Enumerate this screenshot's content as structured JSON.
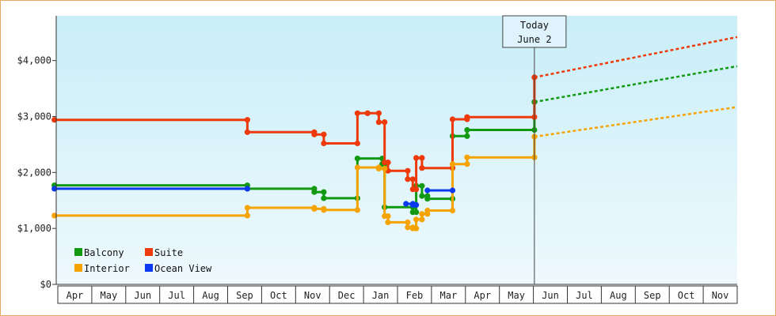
{
  "chart_data": {
    "type": "line",
    "step": true,
    "title": "",
    "xlabel": "",
    "ylabel": "",
    "ylim": [
      0,
      4800
    ],
    "y_ticks": [
      {
        "value": 0,
        "label": "$0"
      },
      {
        "value": 1000,
        "label": "$1,000"
      },
      {
        "value": 2000,
        "label": "$2,000"
      },
      {
        "value": 3000,
        "label": "$3,000"
      },
      {
        "value": 4000,
        "label": "$4,000"
      }
    ],
    "months": [
      "Apr",
      "May",
      "Jun",
      "Jul",
      "Aug",
      "Sep",
      "Oct",
      "Nov",
      "Dec",
      "Jan",
      "Feb",
      "Mar",
      "Apr",
      "May",
      "Jun",
      "Jul",
      "Aug",
      "Sep",
      "Oct",
      "Nov"
    ],
    "x_unit": "months since start of first Apr",
    "today": {
      "line1": "Today",
      "line2": "June 2",
      "x": 14.03
    },
    "legend": [
      {
        "label": "Balcony",
        "series": 0
      },
      {
        "label": "Suite",
        "series": 1
      },
      {
        "label": "Interior",
        "series": 2
      },
      {
        "label": "Ocean View",
        "series": 3
      }
    ],
    "colors": {
      "Balcony": "#119911",
      "Suite": "#ee3a0a",
      "Interior": "#f5a300",
      "Ocean View": "#0a3af0",
      "background_top": "#c9eef8",
      "background_bottom": "#eef9fd"
    },
    "series": [
      {
        "name": "Balcony",
        "points": [
          [
            -0.1,
            1770
          ],
          [
            5.58,
            1770
          ],
          [
            5.58,
            1710
          ],
          [
            7.55,
            1710
          ],
          [
            7.55,
            1650
          ],
          [
            7.83,
            1650
          ],
          [
            7.83,
            1540
          ],
          [
            8.82,
            1540
          ],
          [
            8.82,
            2250
          ],
          [
            9.55,
            2250
          ],
          [
            9.55,
            2150
          ],
          [
            9.62,
            2150
          ],
          [
            9.62,
            1380
          ],
          [
            10.45,
            1380
          ],
          [
            10.45,
            1290
          ],
          [
            10.55,
            1290
          ],
          [
            10.55,
            1760
          ],
          [
            10.72,
            1760
          ],
          [
            10.72,
            1580
          ],
          [
            10.88,
            1580
          ],
          [
            10.88,
            1530
          ],
          [
            11.62,
            1530
          ],
          [
            11.62,
            2650
          ],
          [
            12.05,
            2650
          ],
          [
            12.05,
            2760
          ],
          [
            14.03,
            2760
          ],
          [
            14.03,
            3260
          ]
        ],
        "projection": [
          [
            14.03,
            3260
          ],
          [
            20.0,
            3900
          ]
        ]
      },
      {
        "name": "Suite",
        "points": [
          [
            -0.1,
            2940
          ],
          [
            5.58,
            2940
          ],
          [
            5.58,
            2720
          ],
          [
            7.55,
            2720
          ],
          [
            7.55,
            2680
          ],
          [
            7.83,
            2680
          ],
          [
            7.83,
            2520
          ],
          [
            8.82,
            2520
          ],
          [
            8.82,
            3060
          ],
          [
            9.12,
            3060
          ],
          [
            9.12,
            3060
          ],
          [
            9.45,
            3060
          ],
          [
            9.45,
            2900
          ],
          [
            9.62,
            2900
          ],
          [
            9.62,
            2180
          ],
          [
            9.72,
            2180
          ],
          [
            9.72,
            2030
          ],
          [
            10.3,
            2030
          ],
          [
            10.3,
            1880
          ],
          [
            10.45,
            1880
          ],
          [
            10.45,
            1700
          ],
          [
            10.55,
            1700
          ],
          [
            10.55,
            2260
          ],
          [
            10.72,
            2260
          ],
          [
            10.72,
            2080
          ],
          [
            11.62,
            2080
          ],
          [
            11.62,
            2950
          ],
          [
            12.05,
            2950
          ],
          [
            12.05,
            2990
          ],
          [
            14.03,
            2990
          ],
          [
            14.03,
            3700
          ]
        ],
        "projection": [
          [
            14.03,
            3700
          ],
          [
            20.0,
            4420
          ]
        ]
      },
      {
        "name": "Interior",
        "points": [
          [
            -0.1,
            1230
          ],
          [
            5.58,
            1230
          ],
          [
            5.58,
            1370
          ],
          [
            7.55,
            1370
          ],
          [
            7.55,
            1350
          ],
          [
            7.83,
            1350
          ],
          [
            7.83,
            1330
          ],
          [
            8.82,
            1330
          ],
          [
            8.82,
            2090
          ],
          [
            9.45,
            2090
          ],
          [
            9.45,
            2070
          ],
          [
            9.62,
            2070
          ],
          [
            9.62,
            1220
          ],
          [
            9.72,
            1220
          ],
          [
            9.72,
            1110
          ],
          [
            10.3,
            1110
          ],
          [
            10.3,
            1020
          ],
          [
            10.45,
            1020
          ],
          [
            10.45,
            1000
          ],
          [
            10.55,
            1000
          ],
          [
            10.55,
            1160
          ],
          [
            10.72,
            1160
          ],
          [
            10.72,
            1260
          ],
          [
            10.88,
            1260
          ],
          [
            10.88,
            1320
          ],
          [
            11.62,
            1320
          ],
          [
            11.62,
            2150
          ],
          [
            12.05,
            2150
          ],
          [
            12.05,
            2270
          ],
          [
            14.03,
            2270
          ],
          [
            14.03,
            2640
          ]
        ],
        "projection": [
          [
            14.03,
            2640
          ],
          [
            20.0,
            3170
          ]
        ]
      },
      {
        "name": "Ocean View",
        "points": [
          [
            -0.1,
            1710
          ],
          [
            5.58,
            1710
          ],
          [
            10.25,
            1440
          ],
          [
            10.45,
            1440
          ],
          [
            10.45,
            1420
          ],
          [
            10.55,
            1420
          ],
          [
            10.88,
            1680
          ],
          [
            11.62,
            1680
          ]
        ],
        "segments": [
          [
            0,
            1
          ],
          [
            2,
            5
          ],
          [
            6,
            7
          ]
        ],
        "projection": []
      }
    ]
  }
}
